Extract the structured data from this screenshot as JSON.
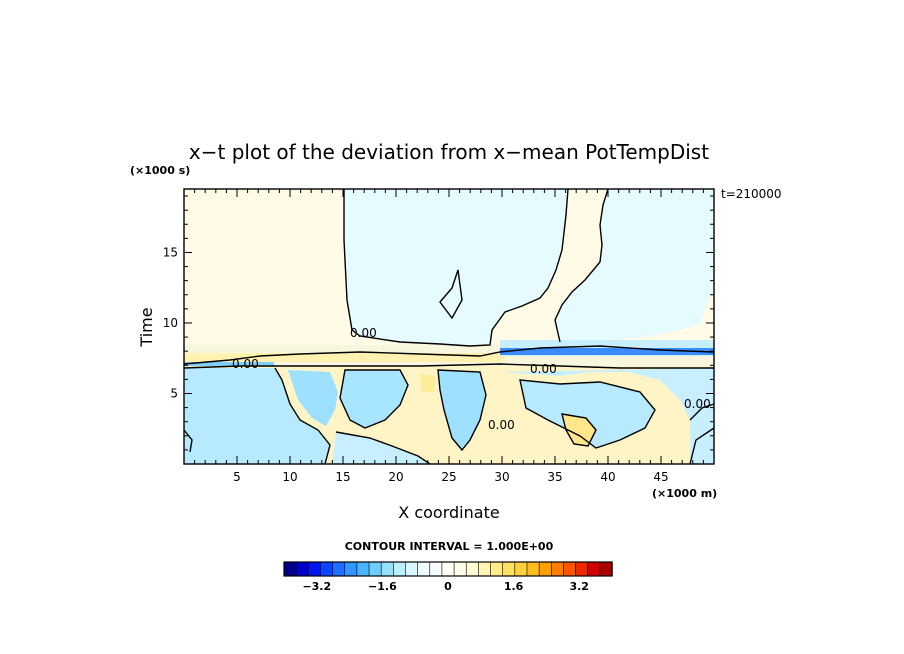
{
  "chart_data": {
    "type": "heatmap",
    "title": "x−t plot of the deviation from x−mean PotTempDist",
    "xlabel": "X coordinate",
    "ylabel": "Time",
    "x_unit": "(×1000 m)",
    "y_unit": "(×1000 s)",
    "time_stamp": "t=210000",
    "xlim": [
      0,
      50
    ],
    "ylim": [
      0,
      19.5
    ],
    "x_ticks": [
      5,
      10,
      15,
      20,
      25,
      30,
      35,
      40,
      45
    ],
    "y_ticks": [
      5,
      10,
      15
    ],
    "contour_interval_text": "CONTOUR INTERVAL = 1.000E+00",
    "contour_labels": [
      {
        "text": "0.00",
        "x": 17,
        "y": 9.4
      },
      {
        "text": "0.00",
        "x": 6.5,
        "y": 7.4
      },
      {
        "text": "0.00",
        "x": 34,
        "y": 6.9
      },
      {
        "text": "0.00",
        "x": 30,
        "y": 2.9
      },
      {
        "text": "0.00",
        "x": 48.5,
        "y": 4.5
      }
    ],
    "colorbar": {
      "range": [
        -4,
        4
      ],
      "step": 0.4,
      "tick_values": [
        -3.2,
        -1.6,
        0,
        1.6,
        3.2
      ],
      "tick_labels": [
        "−3.2",
        "−1.6",
        "0",
        "1.6",
        "3.2"
      ],
      "colors": [
        "#00008b",
        "#0000c8",
        "#0018f0",
        "#0a46ff",
        "#1e6eff",
        "#3296ff",
        "#4bb4ff",
        "#6ecdff",
        "#96e1ff",
        "#bcf0ff",
        "#daf8ff",
        "#eefdff",
        "#f8feff",
        "#fffff8",
        "#fffde8",
        "#fffbd4",
        "#fff5b4",
        "#ffec8c",
        "#ffe164",
        "#ffd23c",
        "#ffbe1e",
        "#ffa000",
        "#ff7d00",
        "#ff5500",
        "#f02800",
        "#d20000",
        "#aa0000"
      ]
    },
    "regions": {
      "upper_light_cyan": {
        "color": "#e6fbff",
        "t_from": 8.5,
        "t_to": 19.5
      },
      "upper_cream": {
        "color": "#fffbe6"
      },
      "lower_cyan": {
        "color": "#b8eaff"
      },
      "lower_yellow": {
        "color": "#fff4c6"
      },
      "front_blue": {
        "color": "#3a8cff",
        "x_from": 30,
        "x_to": 50,
        "t": 7.8
      }
    }
  }
}
